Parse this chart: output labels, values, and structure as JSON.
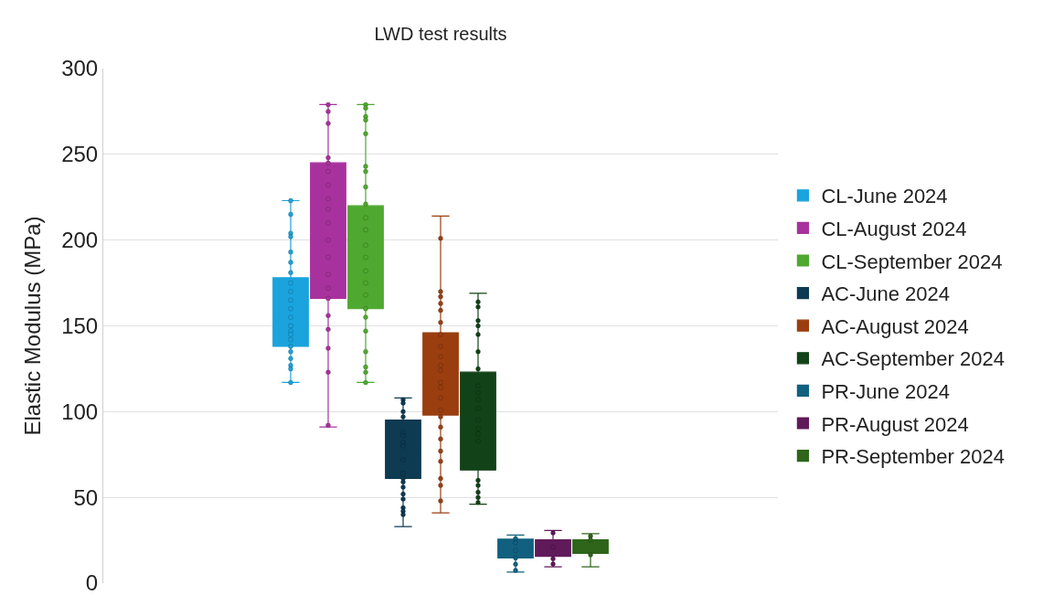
{
  "chart_data": {
    "type": "box",
    "title": "LWD test results",
    "ylabel": "Elastic Modulus (MPa)",
    "categories": [
      null
    ],
    "ylim": [
      0,
      300
    ],
    "yticks": [
      0,
      50,
      100,
      150,
      200,
      250,
      300
    ],
    "grid": "y",
    "legend": "right",
    "tick_labels": "y",
    "marker": "circle",
    "series": [
      {
        "name": "CL-June 2024",
        "color": "#1aa3dc",
        "boxes": [
          {
            "low": 117,
            "q1": 138,
            "median": 147,
            "q3": 178,
            "high": 223,
            "mean": 158,
            "outliers": [
              223,
              215,
              204,
              202,
              193,
              187,
              181,
              175,
              170,
              165,
              160,
              155,
              150,
              147,
              145,
              142,
              138,
              135,
              131,
              127,
              125,
              117
            ]
          }
        ]
      },
      {
        "name": "CL-August 2024",
        "color": "#a8329d",
        "boxes": [
          {
            "low": 91,
            "q1": 166,
            "median": 212,
            "q3": 245,
            "high": 279,
            "mean": 203,
            "outliers": [
              279,
              275,
              268,
              248,
              245,
              240,
              232,
              224,
              218,
              210,
              200,
              190,
              180,
              172,
              166,
              156,
              148,
              137,
              123,
              92
            ]
          }
        ]
      },
      {
        "name": "CL-September 2024",
        "color": "#4fa82f",
        "boxes": [
          {
            "low": 117,
            "q1": 160,
            "median": 173,
            "q3": 220,
            "high": 279,
            "mean": 188,
            "outliers": [
              279,
              277,
              272,
              270,
              262,
              243,
              240,
              231,
              221,
              213,
              206,
              197,
              190,
              182,
              175,
              168,
              160,
              155,
              147,
              135,
              126,
              123,
              117
            ]
          }
        ]
      },
      {
        "name": "AC-June 2024",
        "color": "#0e3a52",
        "boxes": [
          {
            "low": 33,
            "q1": 61,
            "median": 78,
            "q3": 95,
            "high": 108,
            "mean": 77,
            "outliers": [
              107,
              105,
              100,
              97,
              88,
              86,
              82,
              80,
              72,
              64,
              61,
              59,
              56,
              52,
              49,
              44,
              42,
              40
            ]
          }
        ]
      },
      {
        "name": "AC-August 2024",
        "color": "#9a3e10",
        "boxes": [
          {
            "low": 41,
            "q1": 98,
            "median": 118,
            "q3": 146,
            "high": 214,
            "mean": 120,
            "outliers": [
              201,
              170,
              167,
              163,
              159,
              152,
              145,
              138,
              132,
              127,
              124,
              117,
              114,
              108,
              101,
              97,
              91,
              84,
              77,
              71,
              61,
              57,
              48
            ]
          }
        ]
      },
      {
        "name": "AC-September 2024",
        "color": "#124218",
        "boxes": [
          {
            "low": 46,
            "q1": 66,
            "median": 95,
            "q3": 123,
            "high": 169,
            "mean": 100,
            "outliers": [
              164,
              161,
              153,
              150,
              145,
              135,
              125,
              115,
              111,
              107,
              102,
              95,
              90,
              87,
              83,
              60,
              57,
              53,
              50,
              47
            ]
          }
        ]
      },
      {
        "name": "PR-June 2024",
        "color": "#11607f",
        "boxes": [
          {
            "low": 6.5,
            "q1": 14.7,
            "median": 21,
            "q3": 25.6,
            "high": 28,
            "mean": 20,
            "outliers": [
              26,
              23.5,
              19,
              14.7,
              11,
              7.4
            ]
          }
        ]
      },
      {
        "name": "PR-August 2024",
        "color": "#601a5a",
        "boxes": [
          {
            "low": 9.5,
            "q1": 15.6,
            "median": 21,
            "q3": 25.3,
            "high": 30.7,
            "mean": 20.5,
            "outliers": [
              29.3,
              21,
              14.2,
              11.2
            ]
          }
        ]
      },
      {
        "name": "PR-September 2024",
        "color": "#2e651b",
        "boxes": [
          {
            "low": 9.5,
            "q1": 17.4,
            "median": 23.5,
            "q3": 25.3,
            "high": 28.8,
            "mean": 21.7,
            "outliers": [
              27.5,
              25.3,
              16.5
            ]
          }
        ]
      }
    ]
  }
}
